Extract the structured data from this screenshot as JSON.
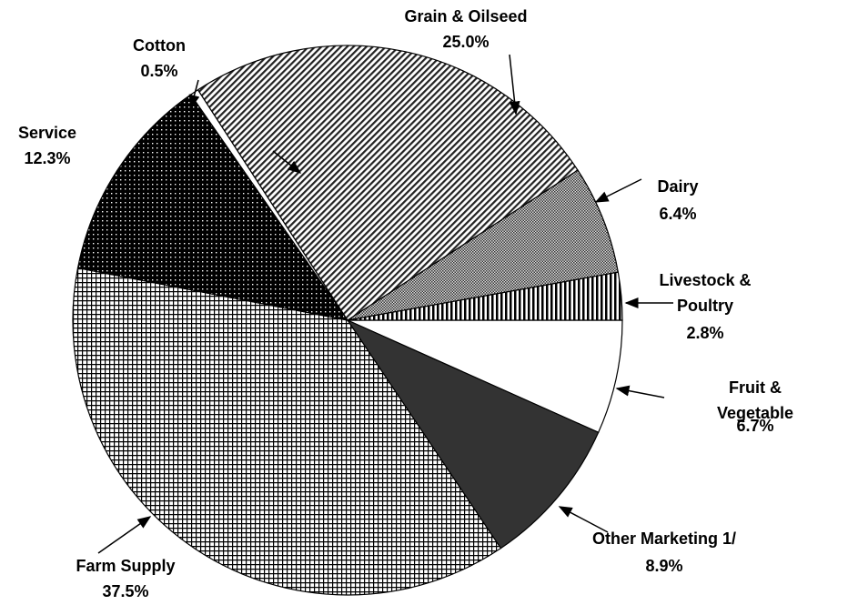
{
  "chart_data": {
    "type": "pie",
    "categories": [
      "Fruit & Vegetable",
      "Other Marketing 1/",
      "Farm Supply",
      "Service",
      "Cotton",
      "Grain & Oilseed",
      "Dairy",
      "Livestock & Poultry"
    ],
    "values": [
      6.7,
      8.9,
      37.5,
      12.3,
      0.5,
      25.0,
      6.4,
      2.8
    ],
    "value_labels": [
      "6.7%",
      "8.9%",
      "37.5%",
      "12.3%",
      "0.5%",
      "25.0%",
      "6.4%",
      "2.8%"
    ],
    "colors": [
      "#ffffff",
      "#333333",
      "url(#p-grid)",
      "url(#p-dots)",
      "#ffffff",
      "url(#p-diag)",
      "url(#p-check)",
      "url(#p-vert)"
    ]
  }
}
